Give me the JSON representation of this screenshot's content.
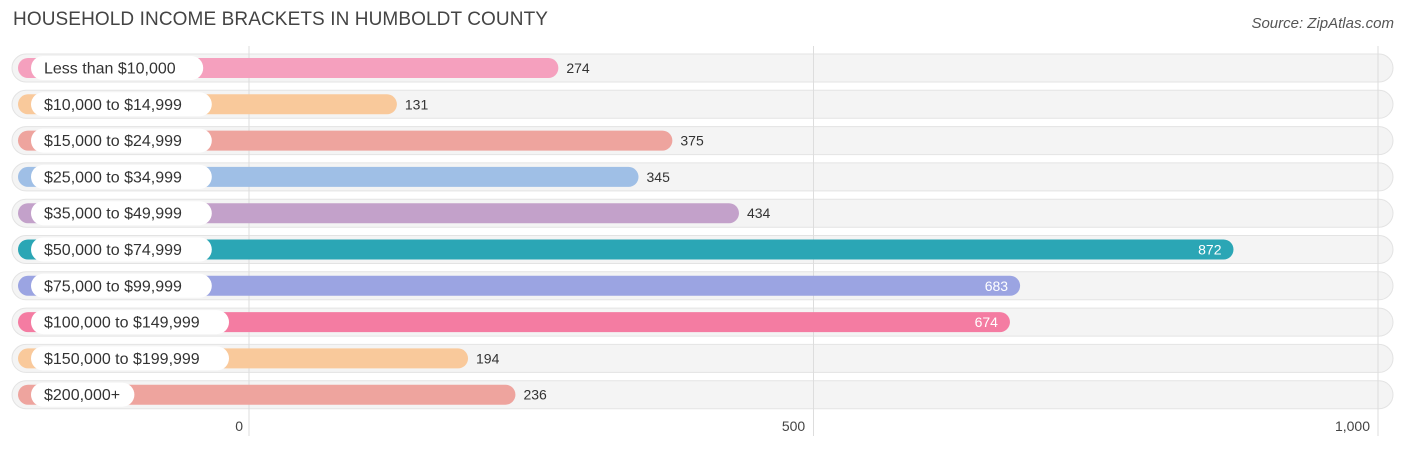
{
  "title": "HOUSEHOLD INCOME BRACKETS IN HUMBOLDT COUNTY",
  "source": "Source: ZipAtlas.com",
  "chart_data": {
    "type": "bar",
    "orientation": "horizontal",
    "title": "HOUSEHOLD INCOME BRACKETS IN HUMBOLDT COUNTY",
    "categories": [
      "Less than $10,000",
      "$10,000 to $14,999",
      "$15,000 to $24,999",
      "$25,000 to $34,999",
      "$35,000 to $49,999",
      "$50,000 to $74,999",
      "$75,000 to $99,999",
      "$100,000 to $149,999",
      "$150,000 to $199,999",
      "$200,000+"
    ],
    "values": [
      274,
      131,
      375,
      345,
      434,
      872,
      683,
      674,
      194,
      236
    ],
    "value_labels": [
      "274",
      "131",
      "375",
      "345",
      "434",
      "872",
      "683",
      "674",
      "194",
      "236"
    ],
    "colors": [
      "#f5a0be",
      "#f9c99b",
      "#eea49e",
      "#9fbfe6",
      "#c3a1ca",
      "#2ba6b5",
      "#9ba4e2",
      "#f47ca2",
      "#f9c99b",
      "#eea49e"
    ],
    "xlim": [
      0,
      1000
    ],
    "xticks": [
      0,
      500,
      1000
    ],
    "xtick_labels": [
      "0",
      "500",
      "1,000"
    ],
    "grid": true,
    "xlabel": "",
    "ylabel": ""
  }
}
